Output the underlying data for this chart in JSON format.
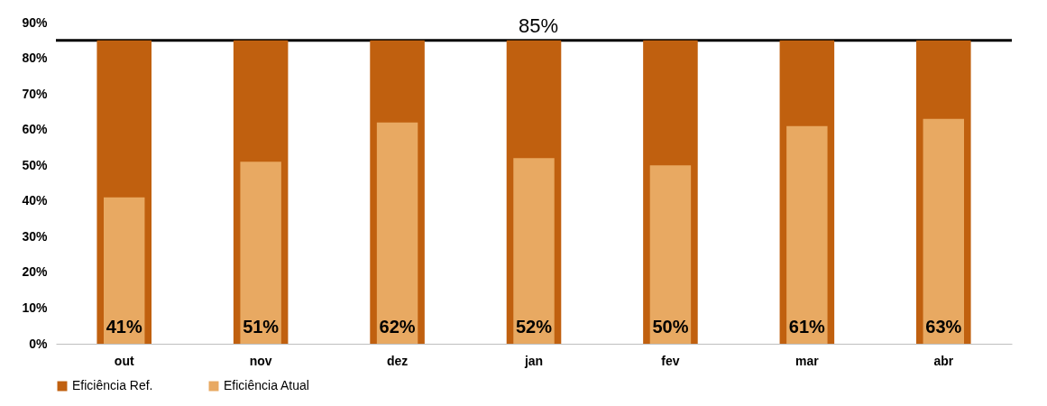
{
  "chart_data": {
    "type": "bar",
    "categories": [
      "out",
      "nov",
      "dez",
      "jan",
      "fev",
      "mar",
      "abr"
    ],
    "series": [
      {
        "name": "Eficiência Ref.",
        "color": "#c0600f",
        "values": [
          85,
          85,
          85,
          85,
          85,
          85,
          85
        ]
      },
      {
        "name": "Eficiência Atual",
        "color": "#e8a962",
        "values": [
          41,
          51,
          62,
          52,
          50,
          61,
          63
        ],
        "value_labels": [
          "41%",
          "51%",
          "62%",
          "52%",
          "50%",
          "61%",
          "63%"
        ]
      }
    ],
    "ylim": [
      0,
      90
    ],
    "yticks": [
      {
        "value": 0,
        "label": "0%"
      },
      {
        "value": 10,
        "label": "10%"
      },
      {
        "value": 20,
        "label": "20%"
      },
      {
        "value": 30,
        "label": "30%"
      },
      {
        "value": 40,
        "label": "40%"
      },
      {
        "value": 50,
        "label": "50%"
      },
      {
        "value": 60,
        "label": "60%"
      },
      {
        "value": 70,
        "label": "70%"
      },
      {
        "value": 80,
        "label": "80%"
      },
      {
        "value": 90,
        "label": "90%"
      }
    ],
    "ref_lines": [
      {
        "axis": "y",
        "value": 85,
        "label": "85%",
        "color": "#000000"
      }
    ],
    "legend": "bottom",
    "grid": false
  }
}
